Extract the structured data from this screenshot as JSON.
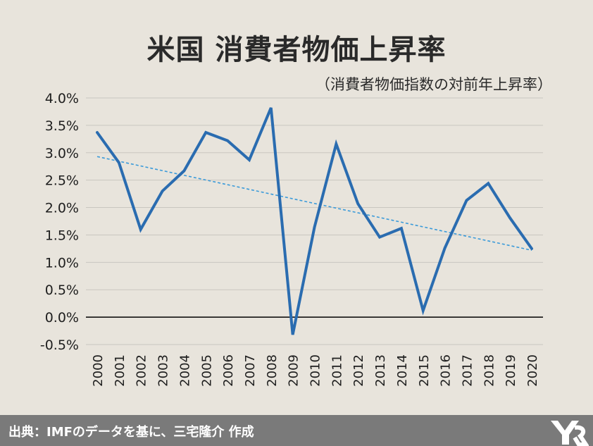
{
  "title": "米国 消費者物価上昇率",
  "subtitle": "（消費者物価指数の対前年上昇率）",
  "footer": {
    "text": "出典：IMFのデータを基に、三宅隆介 作成"
  },
  "colors": {
    "background": "#e8e4dc",
    "line": "#2a6cb0",
    "trend": "#3a9ad9",
    "grid": "#c9c6c0",
    "zero": "#000000",
    "footer": "#7a7a7a"
  },
  "chart_data": {
    "type": "line",
    "title": "米国 消費者物価上昇率",
    "subtitle": "（消費者物価指数の対前年上昇率）",
    "categories": [
      "2000",
      "2001",
      "2002",
      "2003",
      "2004",
      "2005",
      "2006",
      "2007",
      "2008",
      "2009",
      "2010",
      "2011",
      "2012",
      "2013",
      "2014",
      "2015",
      "2016",
      "2017",
      "2018",
      "2019",
      "2020"
    ],
    "series": [
      {
        "values": [
          3.37,
          2.82,
          1.6,
          2.3,
          2.67,
          3.37,
          3.22,
          2.87,
          3.82,
          -0.32,
          1.64,
          3.16,
          2.07,
          1.46,
          1.62,
          0.12,
          1.26,
          2.13,
          2.44,
          1.81,
          1.25
        ]
      }
    ],
    "trendline": {
      "start": 2.93,
      "end": 1.22,
      "style": "dashed"
    },
    "ylim": [
      -0.5,
      4.0
    ],
    "yticks": [
      -0.5,
      0.0,
      0.5,
      1.0,
      1.5,
      2.0,
      2.5,
      3.0,
      3.5,
      4.0
    ],
    "ytick_labels": [
      "-0.5%",
      "0.0%",
      "0.5%",
      "1.0%",
      "1.5%",
      "2.0%",
      "2.5%",
      "3.0%",
      "3.5%",
      "4.0%"
    ],
    "grid": true
  }
}
